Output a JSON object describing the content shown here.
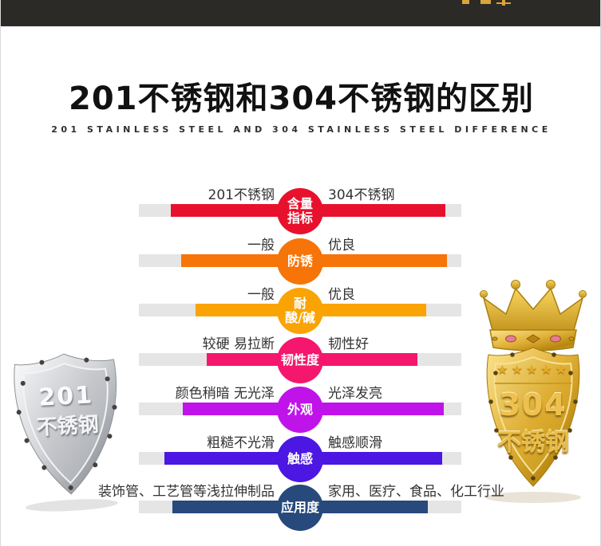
{
  "page": {
    "background": "#ffffff"
  },
  "header": {
    "bar_color": "#2b2a26",
    "decor": "cropped-gold-glyphs",
    "decor_color": "#d8a43b"
  },
  "title": {
    "text": "201不锈钢和304不锈钢的区别",
    "subtitle": "201 STAINLESS STEEL AND 304 STAINLESS STEEL DIFFERENCE"
  },
  "comparison": {
    "track_color": "#e5e5e5",
    "rows": [
      {
        "metric": "含量指标",
        "metric_lines": [
          "含量",
          "指标"
        ],
        "color": "#e8112d",
        "left_label": "201不锈钢",
        "right_label": "304不锈钢",
        "left_pct": 80,
        "right_pct": 90
      },
      {
        "metric": "防锈",
        "color": "#f77408",
        "left_label": "一般",
        "right_label": "优良",
        "left_pct": 74,
        "right_pct": 91
      },
      {
        "metric": "耐酸/碱",
        "metric_lines": [
          "耐",
          "酸/碱"
        ],
        "color": "#f9a404",
        "left_label": "一般",
        "right_label": "优良",
        "left_pct": 65,
        "right_pct": 78
      },
      {
        "metric": "韧性度",
        "color": "#f4176d",
        "left_label": "较硬 易拉断",
        "right_label": "韧性好",
        "left_pct": 58,
        "right_pct": 73
      },
      {
        "metric": "外观",
        "color": "#c013ea",
        "left_label": "颜色稍暗 无光泽",
        "right_label": "光泽发亮",
        "left_pct": 73,
        "right_pct": 89
      },
      {
        "metric": "触感",
        "color": "#4c17e2",
        "left_label": "粗糙不光滑",
        "right_label": "触感顺滑",
        "left_pct": 84,
        "right_pct": 88
      },
      {
        "metric": "应用度",
        "color": "#27497c",
        "left_label": "装饰管、工艺管等浅拉伸制品",
        "right_label": "家用、医疗、食品、化工行业",
        "left_pct": 79,
        "right_pct": 79
      }
    ]
  },
  "badges": {
    "left": {
      "line1": "201",
      "line2": "不锈钢",
      "material": "silver-shield"
    },
    "right": {
      "line1": "304",
      "line2": "不锈钢",
      "material": "gold-shield-with-crown",
      "stars": "★★★★★"
    }
  }
}
